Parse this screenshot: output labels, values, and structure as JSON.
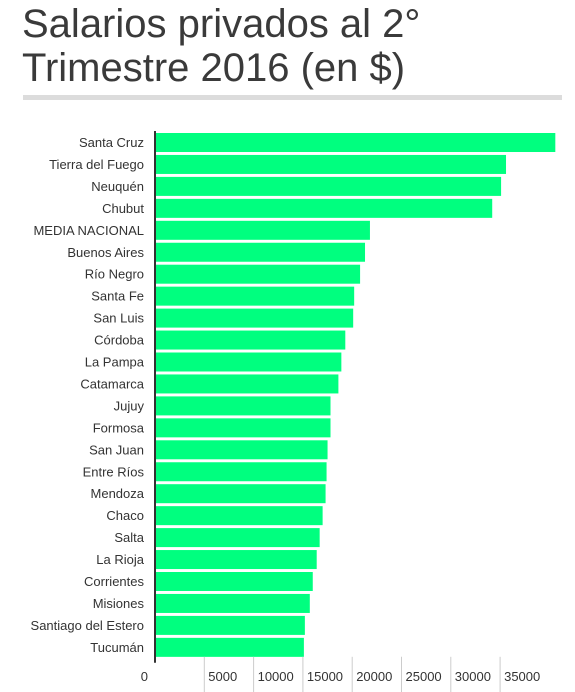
{
  "title": "Salarios privados al 2° Trimestre 2016 (en $)",
  "chart_data": {
    "type": "bar",
    "orientation": "horizontal",
    "title": "Salarios privados al 2° Trimestre 2016 (en $)",
    "xlabel": "",
    "ylabel": "",
    "categories": [
      "Santa Cruz",
      "Tierra del Fuego",
      "Neuquén",
      "Chubut",
      "MEDIA NACIONAL",
      "Buenos Aires",
      "Río Negro",
      "Santa Fe",
      "San Luis",
      "Córdoba",
      "La Pampa",
      "Catamarca",
      "Jujuy",
      "Formosa",
      "San Juan",
      "Entre Ríos",
      "Mendoza",
      "Chaco",
      "Salta",
      "La Rioja",
      "Corrientes",
      "Misiones",
      "Santiago del Estero",
      "Tucumán"
    ],
    "values": [
      40600,
      35600,
      35100,
      34200,
      21800,
      21300,
      20800,
      20200,
      20100,
      19300,
      18900,
      18600,
      17800,
      17800,
      17500,
      17400,
      17300,
      17000,
      16700,
      16400,
      16000,
      15700,
      15200,
      15100
    ],
    "xlim": [
      0,
      40600
    ],
    "xticks": [
      0,
      5000,
      10000,
      15000,
      20000,
      25000,
      30000,
      35000
    ],
    "grid": false,
    "legend": "none",
    "bar_color": "#00ff7f",
    "axis_color": "#333333"
  }
}
